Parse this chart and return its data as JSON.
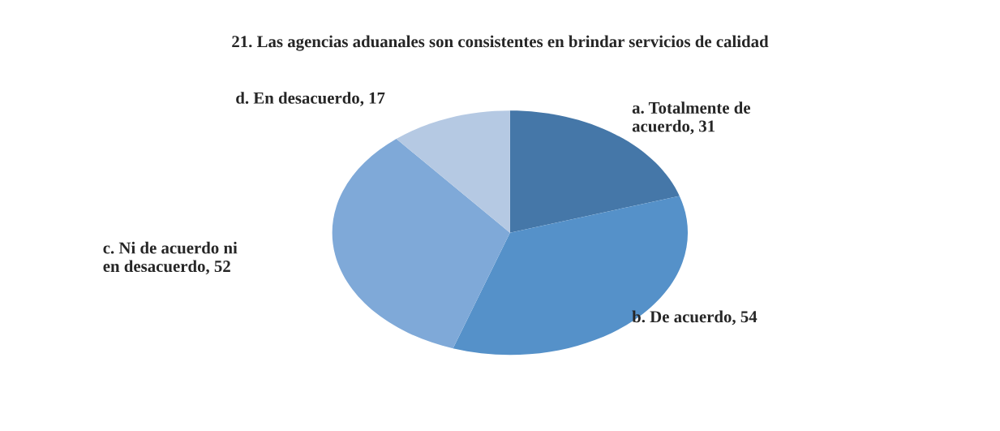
{
  "chart_data": {
    "type": "pie",
    "title": "21. Las agencias aduanales son consistentes en brindar servicios de calidad",
    "categories": [
      "a. Totalmente de acuerdo",
      "b. De acuerdo",
      "c. Ni de acuerdo ni en desacuerdo",
      "d. En desacuerdo"
    ],
    "values": [
      31,
      54,
      52,
      17
    ],
    "colors": [
      "#4577a8",
      "#5591c9",
      "#7fa9d8",
      "#b5c9e3"
    ],
    "value_labels": [
      ", 31",
      ", 54",
      ", 52",
      ", 17"
    ],
    "legend": false
  }
}
